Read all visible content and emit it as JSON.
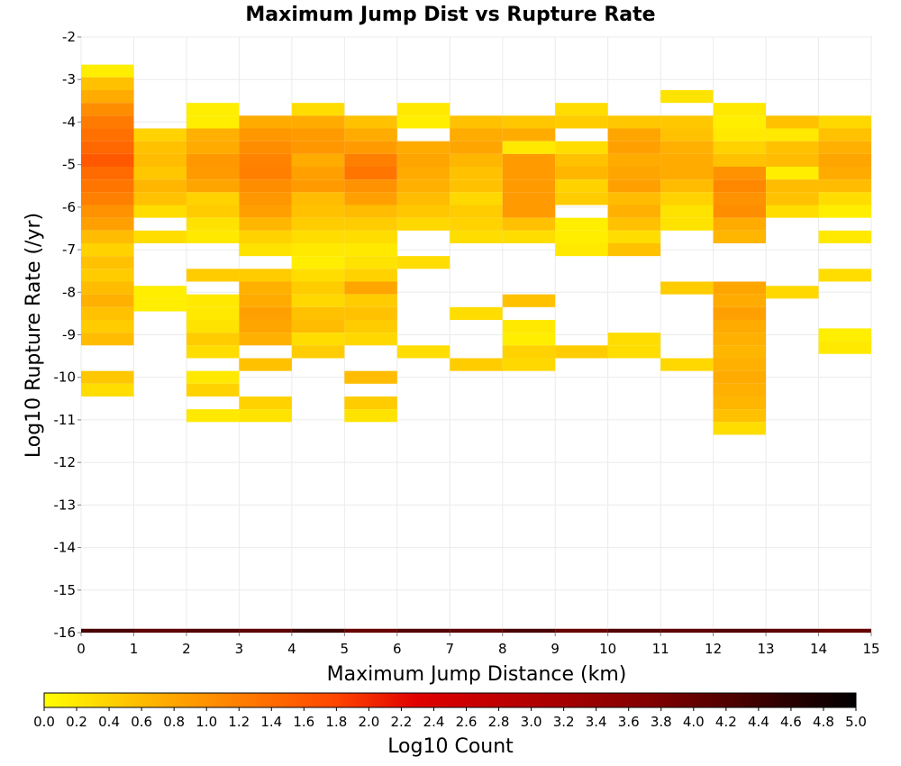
{
  "chart_data": {
    "type": "heatmap",
    "title": "Maximum Jump Dist vs Rupture Rate",
    "xlabel": "Maximum Jump Distance (km)",
    "ylabel": "Log10 Rupture Rate (/yr)",
    "xlim": [
      0,
      15
    ],
    "ylim": [
      -16,
      -2
    ],
    "x_ticks": [
      0,
      1,
      2,
      3,
      4,
      5,
      6,
      7,
      8,
      9,
      10,
      11,
      12,
      13,
      14,
      15
    ],
    "y_ticks": [
      -16,
      -15,
      -14,
      -13,
      -12,
      -11,
      -10,
      -9,
      -8,
      -7,
      -6,
      -5,
      -4,
      -3,
      -2
    ],
    "x_bin_width": 1,
    "y_bin_width": 0.3,
    "colorbar": {
      "label": "Log10 Count",
      "min": 0.0,
      "max": 5.0,
      "ticks": [
        "0.0",
        "0.2",
        "0.4",
        "0.6",
        "0.8",
        "1.0",
        "1.2",
        "1.4",
        "1.6",
        "1.8",
        "2.0",
        "2.2",
        "2.4",
        "2.6",
        "2.8",
        "3.0",
        "3.2",
        "3.4",
        "3.6",
        "3.8",
        "4.0",
        "4.2",
        "4.4",
        "4.6",
        "4.8",
        "5.0"
      ],
      "colors": [
        "#ffff00",
        "#ffa500",
        "#ff4500",
        "#e00000",
        "#800000",
        "#000000"
      ]
    },
    "columns": [
      {
        "x": 0,
        "cells": [
          [
            -2.8,
            0.15
          ],
          [
            -3.1,
            0.55
          ],
          [
            -3.4,
            0.75
          ],
          [
            -3.7,
            1.05
          ],
          [
            -4.0,
            1.25
          ],
          [
            -4.3,
            1.35
          ],
          [
            -4.6,
            1.45
          ],
          [
            -4.9,
            1.6
          ],
          [
            -5.2,
            1.4
          ],
          [
            -5.5,
            1.3
          ],
          [
            -5.8,
            1.2
          ],
          [
            -6.1,
            1.0
          ],
          [
            -6.4,
            0.85
          ],
          [
            -6.7,
            0.6
          ],
          [
            -7.0,
            0.4
          ],
          [
            -7.3,
            0.55
          ],
          [
            -7.6,
            0.45
          ],
          [
            -7.9,
            0.6
          ],
          [
            -8.2,
            0.7
          ],
          [
            -8.5,
            0.55
          ],
          [
            -8.8,
            0.45
          ],
          [
            -9.1,
            0.6
          ],
          [
            -10.0,
            0.5
          ],
          [
            -10.3,
            0.3
          ]
        ]
      },
      {
        "x": 1,
        "cells": [
          [
            -4.3,
            0.4
          ],
          [
            -4.6,
            0.55
          ],
          [
            -4.9,
            0.6
          ],
          [
            -5.2,
            0.5
          ],
          [
            -5.5,
            0.65
          ],
          [
            -5.8,
            0.55
          ],
          [
            -6.1,
            0.3
          ],
          [
            -6.7,
            0.3
          ],
          [
            -8.0,
            0.15
          ],
          [
            -8.3,
            0.15
          ]
        ]
      },
      {
        "x": 2,
        "cells": [
          [
            -3.7,
            0.15
          ],
          [
            -4.0,
            0.15
          ],
          [
            -4.3,
            0.7
          ],
          [
            -4.6,
            0.75
          ],
          [
            -4.9,
            0.95
          ],
          [
            -5.2,
            0.9
          ],
          [
            -5.5,
            0.8
          ],
          [
            -5.8,
            0.4
          ],
          [
            -6.1,
            0.45
          ],
          [
            -6.4,
            0.25
          ],
          [
            -6.7,
            0.2
          ],
          [
            -7.6,
            0.45
          ],
          [
            -8.2,
            0.2
          ],
          [
            -8.5,
            0.2
          ],
          [
            -8.8,
            0.25
          ],
          [
            -9.1,
            0.45
          ],
          [
            -9.4,
            0.3
          ],
          [
            -10.0,
            0.2
          ],
          [
            -10.3,
            0.4
          ],
          [
            -10.9,
            0.2
          ]
        ]
      },
      {
        "x": 3,
        "cells": [
          [
            -4.0,
            0.75
          ],
          [
            -4.3,
            0.95
          ],
          [
            -4.6,
            1.05
          ],
          [
            -4.9,
            1.15
          ],
          [
            -5.2,
            1.2
          ],
          [
            -5.5,
            1.05
          ],
          [
            -5.8,
            0.95
          ],
          [
            -6.1,
            0.85
          ],
          [
            -6.4,
            0.65
          ],
          [
            -6.7,
            0.4
          ],
          [
            -7.0,
            0.25
          ],
          [
            -7.6,
            0.45
          ],
          [
            -7.9,
            0.7
          ],
          [
            -8.2,
            0.75
          ],
          [
            -8.5,
            0.85
          ],
          [
            -8.8,
            0.8
          ],
          [
            -9.1,
            0.7
          ],
          [
            -9.7,
            0.55
          ],
          [
            -10.6,
            0.4
          ],
          [
            -10.9,
            0.25
          ]
        ]
      },
      {
        "x": 4,
        "cells": [
          [
            -3.7,
            0.3
          ],
          [
            -4.0,
            0.75
          ],
          [
            -4.3,
            0.9
          ],
          [
            -4.6,
            0.95
          ],
          [
            -4.9,
            0.75
          ],
          [
            -5.2,
            0.85
          ],
          [
            -5.5,
            0.9
          ],
          [
            -5.8,
            0.6
          ],
          [
            -6.1,
            0.55
          ],
          [
            -6.4,
            0.45
          ],
          [
            -6.7,
            0.3
          ],
          [
            -7.0,
            0.2
          ],
          [
            -7.3,
            0.15
          ],
          [
            -7.6,
            0.3
          ],
          [
            -7.9,
            0.45
          ],
          [
            -8.2,
            0.35
          ],
          [
            -8.5,
            0.55
          ],
          [
            -8.8,
            0.6
          ],
          [
            -9.1,
            0.3
          ],
          [
            -9.4,
            0.45
          ]
        ]
      },
      {
        "x": 5,
        "cells": [
          [
            -4.0,
            0.55
          ],
          [
            -4.3,
            0.75
          ],
          [
            -4.6,
            0.9
          ],
          [
            -4.9,
            1.2
          ],
          [
            -5.2,
            1.3
          ],
          [
            -5.5,
            1.0
          ],
          [
            -5.8,
            0.85
          ],
          [
            -6.1,
            0.6
          ],
          [
            -6.4,
            0.45
          ],
          [
            -6.7,
            0.3
          ],
          [
            -7.0,
            0.2
          ],
          [
            -7.3,
            0.25
          ],
          [
            -7.6,
            0.4
          ],
          [
            -7.9,
            0.8
          ],
          [
            -8.2,
            0.45
          ],
          [
            -8.5,
            0.55
          ],
          [
            -8.8,
            0.45
          ],
          [
            -9.1,
            0.35
          ],
          [
            -10.0,
            0.6
          ],
          [
            -10.6,
            0.45
          ],
          [
            -10.9,
            0.25
          ]
        ]
      },
      {
        "x": 6,
        "cells": [
          [
            -3.7,
            0.2
          ],
          [
            -4.0,
            0.15
          ],
          [
            -4.6,
            0.75
          ],
          [
            -4.9,
            0.8
          ],
          [
            -5.2,
            0.75
          ],
          [
            -5.5,
            0.7
          ],
          [
            -5.8,
            0.6
          ],
          [
            -6.1,
            0.5
          ],
          [
            -6.4,
            0.35
          ],
          [
            -7.3,
            0.3
          ],
          [
            -9.4,
            0.3
          ]
        ]
      },
      {
        "x": 7,
        "cells": [
          [
            -4.0,
            0.55
          ],
          [
            -4.3,
            0.75
          ],
          [
            -4.6,
            0.8
          ],
          [
            -4.9,
            0.65
          ],
          [
            -5.2,
            0.55
          ],
          [
            -5.5,
            0.55
          ],
          [
            -5.8,
            0.35
          ],
          [
            -6.1,
            0.45
          ],
          [
            -6.4,
            0.4
          ],
          [
            -6.7,
            0.3
          ],
          [
            -8.5,
            0.3
          ],
          [
            -9.7,
            0.45
          ]
        ]
      },
      {
        "x": 8,
        "cells": [
          [
            -4.0,
            0.5
          ],
          [
            -4.3,
            0.75
          ],
          [
            -4.6,
            0.2
          ],
          [
            -4.9,
            0.9
          ],
          [
            -5.2,
            0.9
          ],
          [
            -5.5,
            0.9
          ],
          [
            -5.8,
            0.9
          ],
          [
            -6.1,
            0.9
          ],
          [
            -6.4,
            0.55
          ],
          [
            -6.7,
            0.3
          ],
          [
            -8.2,
            0.55
          ],
          [
            -8.8,
            0.2
          ],
          [
            -9.1,
            0.15
          ],
          [
            -9.4,
            0.4
          ],
          [
            -9.7,
            0.35
          ]
        ]
      },
      {
        "x": 9,
        "cells": [
          [
            -3.7,
            0.3
          ],
          [
            -4.0,
            0.45
          ],
          [
            -4.6,
            0.3
          ],
          [
            -4.9,
            0.55
          ],
          [
            -5.2,
            0.65
          ],
          [
            -5.5,
            0.4
          ],
          [
            -5.8,
            0.45
          ],
          [
            -6.4,
            0.15
          ],
          [
            -6.7,
            0.15
          ],
          [
            -7.0,
            0.2
          ],
          [
            -9.4,
            0.45
          ]
        ]
      },
      {
        "x": 10,
        "cells": [
          [
            -4.0,
            0.5
          ],
          [
            -4.3,
            0.8
          ],
          [
            -4.6,
            0.85
          ],
          [
            -4.9,
            0.75
          ],
          [
            -5.2,
            0.8
          ],
          [
            -5.5,
            0.85
          ],
          [
            -5.8,
            0.6
          ],
          [
            -6.1,
            0.7
          ],
          [
            -6.4,
            0.55
          ],
          [
            -6.7,
            0.3
          ],
          [
            -7.0,
            0.55
          ],
          [
            -9.1,
            0.3
          ],
          [
            -9.4,
            0.3
          ]
        ]
      },
      {
        "x": 11,
        "cells": [
          [
            -3.4,
            0.25
          ],
          [
            -4.0,
            0.5
          ],
          [
            -4.3,
            0.55
          ],
          [
            -4.6,
            0.7
          ],
          [
            -4.9,
            0.75
          ],
          [
            -5.2,
            0.75
          ],
          [
            -5.5,
            0.6
          ],
          [
            -5.8,
            0.4
          ],
          [
            -6.1,
            0.25
          ],
          [
            -6.4,
            0.25
          ],
          [
            -7.9,
            0.45
          ],
          [
            -9.7,
            0.35
          ]
        ]
      },
      {
        "x": 12,
        "cells": [
          [
            -3.7,
            0.2
          ],
          [
            -4.0,
            0.15
          ],
          [
            -4.3,
            0.2
          ],
          [
            -4.6,
            0.4
          ],
          [
            -4.9,
            0.55
          ],
          [
            -5.2,
            1.0
          ],
          [
            -5.5,
            1.1
          ],
          [
            -5.8,
            1.0
          ],
          [
            -6.1,
            1.05
          ],
          [
            -6.4,
            0.75
          ],
          [
            -6.7,
            0.65
          ],
          [
            -7.9,
            0.8
          ],
          [
            -8.2,
            0.75
          ],
          [
            -8.5,
            0.85
          ],
          [
            -8.8,
            0.75
          ],
          [
            -9.1,
            0.7
          ],
          [
            -9.4,
            0.65
          ],
          [
            -9.7,
            0.7
          ],
          [
            -10.0,
            0.75
          ],
          [
            -10.3,
            0.7
          ],
          [
            -10.6,
            0.65
          ],
          [
            -10.9,
            0.55
          ],
          [
            -11.2,
            0.3
          ]
        ]
      },
      {
        "x": 13,
        "cells": [
          [
            -4.0,
            0.55
          ],
          [
            -4.3,
            0.2
          ],
          [
            -4.6,
            0.55
          ],
          [
            -4.9,
            0.6
          ],
          [
            -5.2,
            0.15
          ],
          [
            -5.5,
            0.6
          ],
          [
            -5.8,
            0.55
          ],
          [
            -6.1,
            0.3
          ],
          [
            -8.0,
            0.35
          ]
        ]
      },
      {
        "x": 14,
        "cells": [
          [
            -4.0,
            0.35
          ],
          [
            -4.3,
            0.55
          ],
          [
            -4.6,
            0.7
          ],
          [
            -4.9,
            0.8
          ],
          [
            -5.2,
            0.75
          ],
          [
            -5.5,
            0.6
          ],
          [
            -5.8,
            0.3
          ],
          [
            -6.1,
            0.15
          ],
          [
            -6.7,
            0.2
          ],
          [
            -7.6,
            0.3
          ],
          [
            -9.0,
            0.15
          ],
          [
            -9.3,
            0.2
          ]
        ]
      }
    ],
    "bottom_row": {
      "y": -16,
      "values": [
        4.3,
        4.1,
        4.2,
        4.1,
        4.4,
        4.0,
        4.2,
        4.1,
        4.3,
        4.0,
        4.2,
        4.1,
        4.2,
        4.1,
        4.0
      ]
    }
  }
}
